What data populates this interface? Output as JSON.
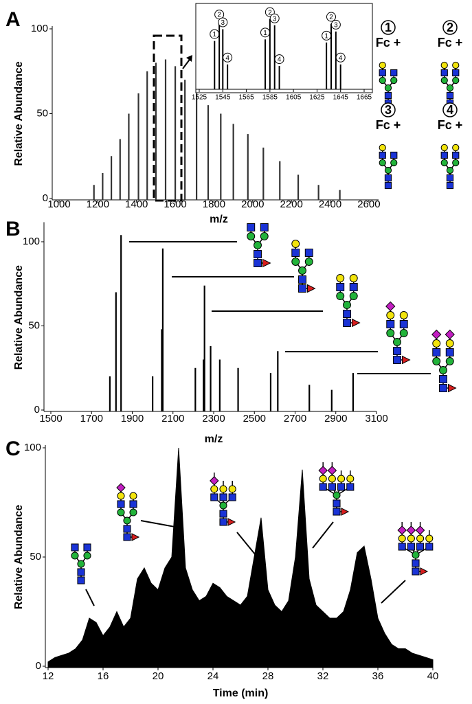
{
  "chart_data": [
    {
      "type": "bar",
      "panel": "A",
      "xlabel": "m/z",
      "ylabel": "Relative Abundance",
      "xlim": [
        1000,
        2650
      ],
      "ylim": [
        0,
        100
      ],
      "xticks": [
        1000,
        1200,
        1400,
        1600,
        1800,
        2000,
        2200,
        2400,
        2600
      ],
      "yticks": [
        0,
        50,
        100
      ],
      "color": "#333333",
      "x": [
        1180,
        1225,
        1270,
        1315,
        1360,
        1410,
        1455,
        1500,
        1550,
        1600,
        1650,
        1710,
        1770,
        1835,
        1900,
        1975,
        2055,
        2140,
        2235,
        2340,
        2450
      ],
      "values": [
        8,
        15,
        25,
        35,
        50,
        62,
        75,
        80,
        82,
        78,
        70,
        62,
        55,
        50,
        44,
        38,
        30,
        22,
        14,
        8,
        5
      ],
      "glycan_legend": [
        {
          "number": "1",
          "label": "Fc +"
        },
        {
          "number": "2",
          "label": "Fc +"
        },
        {
          "number": "3",
          "label": "Fc +"
        },
        {
          "number": "4",
          "label": "Fc +"
        }
      ]
    },
    {
      "type": "bar",
      "panel_inset": true,
      "xlim": [
        1525,
        1665
      ],
      "ylim": [
        0,
        100
      ],
      "xticks": [
        1525,
        1545,
        1565,
        1585,
        1605,
        1625,
        1645,
        1665
      ],
      "color": "#000000",
      "x": [
        1538,
        1542,
        1545,
        1549,
        1581,
        1585,
        1589,
        1593,
        1633,
        1637,
        1641,
        1645
      ],
      "values": [
        60,
        85,
        75,
        30,
        62,
        88,
        80,
        28,
        58,
        82,
        72,
        30
      ],
      "peak_labels": [
        "1",
        "2",
        "3",
        "4",
        "1",
        "2",
        "3",
        "4",
        "1",
        "2",
        "3",
        "4"
      ]
    },
    {
      "type": "bar",
      "panel": "B",
      "xlabel": "m/z",
      "ylabel": "Relative Abundance",
      "xlim": [
        1500,
        3100
      ],
      "ylim": [
        0,
        110
      ],
      "xticks": [
        1500,
        1700,
        1900,
        2100,
        2300,
        2500,
        2700,
        2900,
        3100
      ],
      "yticks": [
        0,
        50,
        100
      ],
      "color": "#000000",
      "x": [
        1790,
        1820,
        1845,
        2000,
        2045,
        2050,
        2210,
        2250,
        2255,
        2285,
        2330,
        2420,
        2580,
        2615,
        2770,
        2880,
        2985
      ],
      "values": [
        20,
        70,
        104,
        20,
        48,
        96,
        25,
        30,
        74,
        38,
        30,
        25,
        22,
        35,
        15,
        12,
        22
      ]
    },
    {
      "type": "area",
      "panel": "C",
      "xlabel": "Time (min)",
      "ylabel": "Relative Abundance",
      "xlim": [
        12,
        40
      ],
      "ylim": [
        0,
        100
      ],
      "xticks": [
        12,
        16,
        20,
        24,
        28,
        32,
        36,
        40
      ],
      "yticks": [
        0,
        50,
        100
      ],
      "color": "#000000",
      "x": [
        12,
        12.5,
        13,
        13.5,
        14,
        14.5,
        15,
        15.5,
        16,
        16.5,
        17,
        17.5,
        18,
        18.5,
        19,
        19.5,
        20,
        20.5,
        21,
        21.5,
        22,
        22.5,
        23,
        23.5,
        24,
        24.5,
        25,
        25.5,
        26,
        26.5,
        27,
        27.5,
        28,
        28.5,
        29,
        29.5,
        30,
        30.5,
        31,
        31.5,
        32,
        32.5,
        33,
        33.5,
        34,
        34.5,
        35,
        35.5,
        36,
        36.5,
        37,
        37.5,
        38,
        38.5,
        39,
        39.5,
        40
      ],
      "values": [
        2,
        4,
        5,
        6,
        8,
        12,
        22,
        20,
        14,
        18,
        25,
        18,
        22,
        40,
        45,
        38,
        35,
        45,
        50,
        100,
        45,
        35,
        30,
        32,
        38,
        36,
        32,
        30,
        28,
        32,
        50,
        68,
        35,
        28,
        25,
        30,
        50,
        90,
        40,
        28,
        25,
        22,
        22,
        25,
        35,
        52,
        55,
        40,
        22,
        15,
        10,
        8,
        8,
        6,
        5,
        4,
        3
      ]
    }
  ]
}
